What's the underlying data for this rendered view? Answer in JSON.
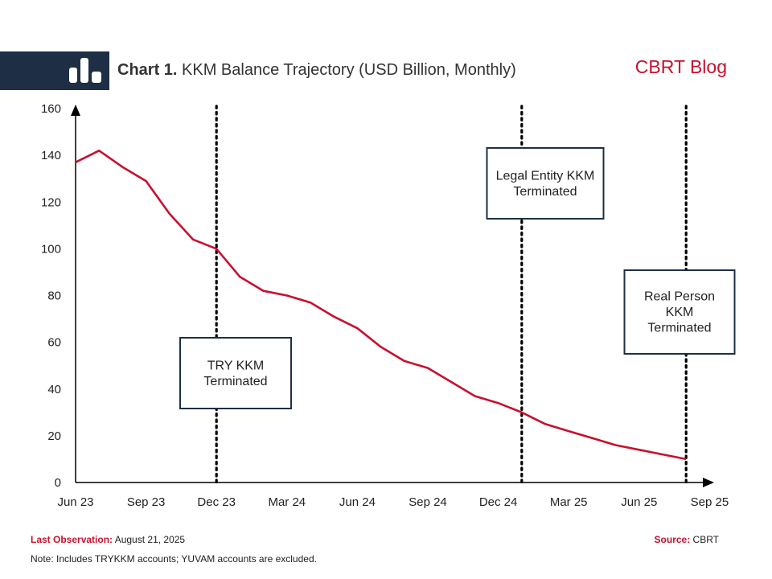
{
  "header": {
    "title_prefix": "Chart 1.",
    "title_main": "KKM Balance Trajectory",
    "title_units": "(USD Billion, Monthly)",
    "brand": "CBRT Blog",
    "logo_icon": "bar-chart-icon"
  },
  "chart_data": {
    "type": "line",
    "title": "Chart 1. KKM Balance Trajectory (USD Billion, Monthly)",
    "xlabel": "",
    "ylabel": "",
    "ylim": [
      0,
      160
    ],
    "yticks": [
      0,
      20,
      40,
      60,
      80,
      100,
      120,
      140,
      160
    ],
    "xticks": [
      "Jun 23",
      "Sep 23",
      "Dec 23",
      "Mar 24",
      "Jun 24",
      "Sep 24",
      "Dec 24",
      "Mar 25",
      "Jun 25",
      "Sep 25"
    ],
    "grid": false,
    "x": [
      "2023-06",
      "2023-07",
      "2023-08",
      "2023-09",
      "2023-10",
      "2023-11",
      "2023-12",
      "2024-01",
      "2024-02",
      "2024-03",
      "2024-04",
      "2024-05",
      "2024-06",
      "2024-07",
      "2024-08",
      "2024-09",
      "2024-10",
      "2024-11",
      "2024-12",
      "2025-01",
      "2025-02",
      "2025-03",
      "2025-04",
      "2025-05",
      "2025-06",
      "2025-07",
      "2025-08"
    ],
    "series": [
      {
        "values": [
          137,
          142,
          135,
          129,
          115,
          104,
          100,
          88,
          82,
          80,
          77,
          71,
          66,
          58,
          52,
          49,
          43,
          37,
          34,
          30,
          25,
          22,
          19,
          16,
          14,
          12,
          10
        ],
        "color": "#c8102e"
      }
    ],
    "events": [
      {
        "x": "2023-12",
        "label": "TRY KKM\nTerminated"
      },
      {
        "x": "2025-01",
        "label": "Legal Entity KKM\nTerminated"
      },
      {
        "x": "2025-08",
        "label": "Real Person\nKKM\nTerminated"
      }
    ]
  },
  "footer": {
    "last_obs_label": "Last Observation:",
    "last_obs_value": "August 21, 2025",
    "source_label": "Source:",
    "source_value": "CBRT",
    "note": "Note: Includes TRYKKM accounts; YUVAM accounts are excluded."
  },
  "colors": {
    "accent": "#c8102e",
    "navy": "#1e2f45"
  }
}
